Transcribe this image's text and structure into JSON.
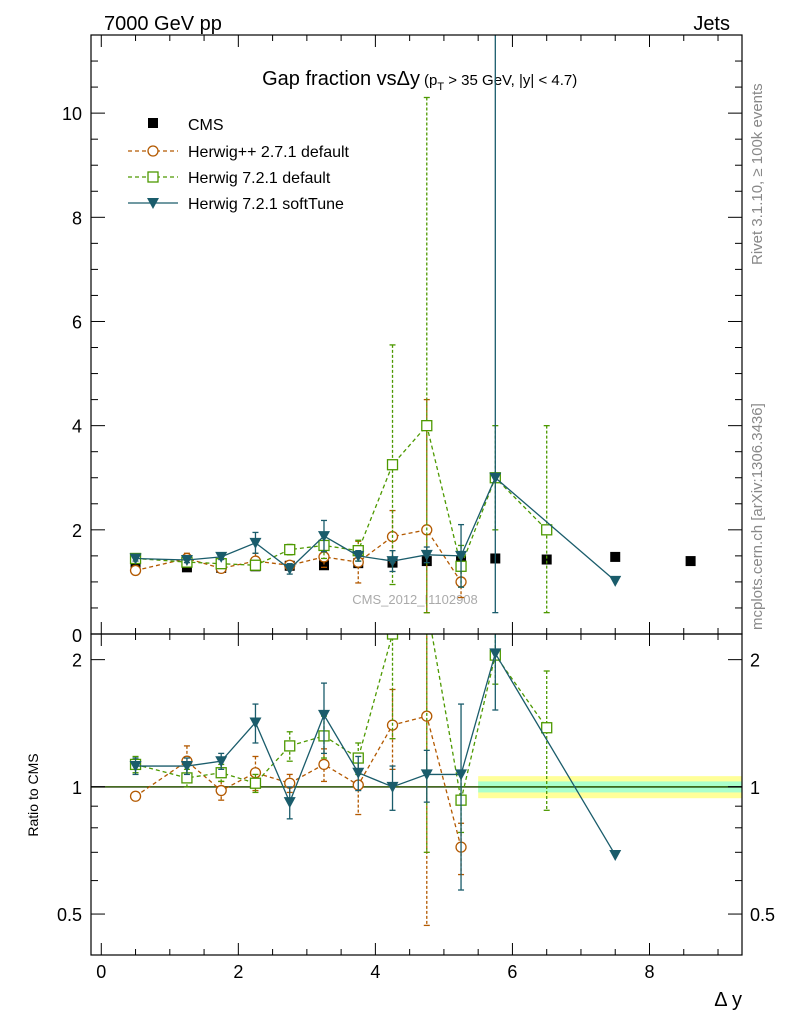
{
  "header": {
    "left": "7000 GeV pp",
    "right": "Jets"
  },
  "side_labels": {
    "rivet": "Rivet 3.1.10, ≥ 100k events",
    "mcplots": "mcplots.cern.ch [arXiv:1306.3436]"
  },
  "chart_data": {
    "type": "scatter",
    "title_main": "Gap fraction vsΔy",
    "title_sub_pre": "(p",
    "title_sub_idx": "T",
    "title_sub_post": " > 35 GeV, |y| < 4.7)",
    "watermark": "CMS_2012_I1102908",
    "xlabel": "Δ y",
    "ratio_ylabel": "Ratio to CMS",
    "xlim": [
      -0.15,
      9.35
    ],
    "ylim": [
      0,
      11.5
    ],
    "ratio_ylim": [
      0.4,
      2.3
    ],
    "main_yticks": [
      0,
      2,
      4,
      6,
      8,
      10
    ],
    "ratio_yticks": [
      0.5,
      1,
      2
    ],
    "ratio_ytick_labels": [
      "0.5",
      "1",
      "2"
    ],
    "xticks": [
      0,
      2,
      4,
      6,
      8
    ],
    "main_ytick_labels": [
      "0",
      "2",
      "4",
      "6",
      "8",
      "10"
    ],
    "xtick_labels": [
      "0",
      "2",
      "4",
      "6",
      "8"
    ],
    "legend_placement": "top-left",
    "series": [
      {
        "name": "CMS",
        "color": "#000000",
        "marker": "square-filled",
        "line": "none",
        "x": [
          0.5,
          1.25,
          1.75,
          2.25,
          2.75,
          3.25,
          3.75,
          4.25,
          4.75,
          5.25,
          5.75,
          6.5,
          7.5,
          8.6
        ],
        "y": [
          1.3,
          1.28,
          1.27,
          1.3,
          1.31,
          1.32,
          1.36,
          1.37,
          1.4,
          1.4,
          1.45,
          1.43,
          1.48,
          1.4
        ],
        "ratio": [
          1,
          1,
          1,
          1,
          1,
          1,
          1,
          1,
          1,
          1,
          1,
          1,
          1,
          1
        ]
      },
      {
        "name": "Herwig++ 2.7.1 default",
        "color": "#b35900",
        "marker": "circle-open",
        "line": "dashed",
        "x": [
          0.5,
          1.25,
          1.75,
          2.25,
          2.75,
          3.25,
          3.75,
          4.25,
          4.75,
          5.25
        ],
        "y": [
          1.22,
          1.45,
          1.26,
          1.4,
          1.32,
          1.48,
          1.38,
          1.87,
          2.0,
          1.0
        ],
        "err": [
          0.03,
          0.1,
          0.05,
          0.15,
          0.05,
          0.2,
          0.4,
          0.5,
          2.5,
          0.3
        ],
        "ratio": [
          0.95,
          1.15,
          0.98,
          1.08,
          1.02,
          1.13,
          1.01,
          1.4,
          1.47,
          0.72
        ],
        "ratio_err": [
          0.02,
          0.1,
          0.05,
          0.1,
          0.05,
          0.1,
          0.15,
          0.3,
          1.0,
          0.1
        ]
      },
      {
        "name": "Herwig 7.2.1 default",
        "color": "#4d9900",
        "marker": "square-open",
        "line": "dashed",
        "x": [
          0.5,
          1.25,
          1.75,
          2.25,
          2.75,
          3.25,
          3.75,
          4.25,
          4.75,
          5.25,
          5.75,
          6.5
        ],
        "y": [
          1.45,
          1.38,
          1.35,
          1.32,
          1.62,
          1.7,
          1.6,
          3.25,
          4.0,
          1.3,
          3.0,
          2.0
        ],
        "err": [
          0.05,
          0.05,
          0.05,
          0.08,
          0.1,
          0.25,
          0.2,
          2.3,
          6.3,
          0.4,
          1.0,
          2.0
        ],
        "ratio": [
          1.13,
          1.05,
          1.08,
          1.02,
          1.25,
          1.32,
          1.17,
          2.3,
          2.7,
          0.93,
          2.05,
          1.38
        ],
        "ratio_err": [
          0.05,
          0.05,
          0.05,
          0.05,
          0.1,
          0.15,
          0.1,
          1.0,
          2.0,
          0.15,
          0.3,
          0.5
        ]
      },
      {
        "name": "Herwig 7.2.1 softTune",
        "color": "#1a5c6b",
        "marker": "triangle-down-filled",
        "line": "solid",
        "x": [
          0.5,
          1.25,
          1.75,
          2.25,
          2.75,
          3.25,
          3.75,
          4.25,
          4.75,
          5.25,
          5.75,
          7.5
        ],
        "y": [
          1.45,
          1.42,
          1.48,
          1.75,
          1.25,
          1.88,
          1.5,
          1.4,
          1.52,
          1.5,
          3.0,
          1.02
        ],
        "err": [
          0.05,
          0.05,
          0.05,
          0.2,
          0.1,
          0.3,
          0.1,
          0.2,
          0.15,
          0.6,
          8.6,
          0.0
        ],
        "ratio": [
          1.12,
          1.12,
          1.15,
          1.42,
          0.92,
          1.48,
          1.08,
          1.0,
          1.07,
          1.07,
          2.07,
          0.69
        ],
        "ratio_err": [
          0.05,
          0.05,
          0.05,
          0.15,
          0.08,
          0.28,
          0.1,
          0.12,
          0.15,
          0.5,
          0.55,
          0.0
        ]
      }
    ],
    "ratio_band_start_x": 5.5,
    "ratio_band_inner": 0.03,
    "ratio_band_outer": 0.06
  }
}
